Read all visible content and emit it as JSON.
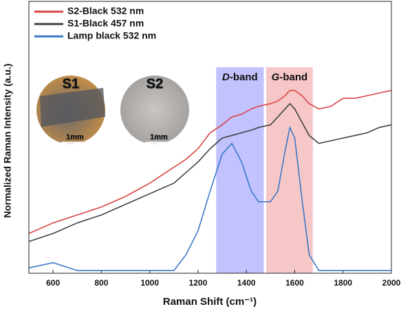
{
  "chart_data": {
    "type": "line",
    "xlabel": "Raman Shift (cm⁻¹)",
    "ylabel": "Normalized Raman Intensity (a.u.)",
    "xlim": [
      500,
      2000
    ],
    "xticks": [
      600,
      800,
      1000,
      1200,
      1400,
      1600,
      1800,
      2000
    ],
    "ylim": [
      0,
      1
    ],
    "legend": "upper left",
    "x": [
      500,
      600,
      700,
      800,
      900,
      1000,
      1100,
      1150,
      1200,
      1250,
      1300,
      1340,
      1380,
      1420,
      1450,
      1500,
      1530,
      1560,
      1580,
      1600,
      1630,
      1660,
      1700,
      1750,
      1800,
      1850,
      1900,
      1950,
      2000
    ],
    "series": [
      {
        "name": "S2-Black 532 nm",
        "color": "#d94343",
        "values": [
          0.15,
          0.19,
          0.22,
          0.25,
          0.29,
          0.34,
          0.4,
          0.43,
          0.47,
          0.53,
          0.56,
          0.59,
          0.6,
          0.62,
          0.63,
          0.64,
          0.65,
          0.67,
          0.69,
          0.69,
          0.67,
          0.64,
          0.62,
          0.63,
          0.66,
          0.66,
          0.67,
          0.68,
          0.69
        ]
      },
      {
        "name": "S1-Black 457 nm",
        "color": "#404040",
        "values": [
          0.12,
          0.15,
          0.19,
          0.22,
          0.26,
          0.3,
          0.34,
          0.38,
          0.42,
          0.47,
          0.51,
          0.52,
          0.53,
          0.54,
          0.55,
          0.56,
          0.59,
          0.62,
          0.64,
          0.62,
          0.57,
          0.52,
          0.49,
          0.5,
          0.51,
          0.52,
          0.53,
          0.55,
          0.56
        ]
      },
      {
        "name": "Lamp black 532 nm",
        "color": "#3a78c9",
        "values": [
          0.02,
          0.04,
          0.01,
          0.01,
          0.01,
          0.01,
          0.01,
          0.07,
          0.16,
          0.31,
          0.45,
          0.49,
          0.42,
          0.31,
          0.27,
          0.27,
          0.31,
          0.46,
          0.55,
          0.51,
          0.28,
          0.07,
          0.01,
          0.01,
          0.01,
          0.01,
          0.01,
          0.01,
          0.01
        ]
      }
    ],
    "bands": [
      {
        "label": "D-band",
        "range": [
          1275,
          1472
        ],
        "color": "rgba(120,120,255,0.45)"
      },
      {
        "label": "G-band",
        "range": [
          1482,
          1675
        ],
        "color": "rgba(235,130,130,0.45)"
      }
    ],
    "insets": [
      {
        "label": "S1",
        "scale": "1mm"
      },
      {
        "label": "S2",
        "scale": "1mm"
      }
    ]
  }
}
